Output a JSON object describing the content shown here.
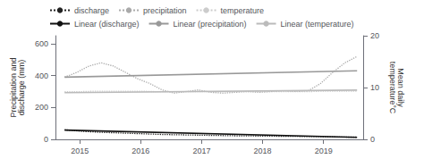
{
  "chart_data": {
    "type": "line",
    "ylabel": "Precipitation and\ndischarge (mm)",
    "y2label": "Mean daily\ntemperature°C",
    "xlim": [
      2014.6,
      2019.65
    ],
    "xticks": [
      2015,
      2016,
      2017,
      2018,
      2019
    ],
    "ylim": [
      0,
      650
    ],
    "yticks": [
      0,
      200,
      400,
      600
    ],
    "y2lim": [
      0.0,
      20.0
    ],
    "y2ticks": [
      0,
      10,
      20
    ],
    "grid": false,
    "legend": "top",
    "series": [
      {
        "name": "discharge",
        "color": "#222222",
        "line_style": "dotted",
        "x": [
          2014.75,
          2014.9,
          2015.05,
          2015.2,
          2015.35,
          2015.5,
          2015.65,
          2015.8,
          2015.95,
          2016.1,
          2016.25,
          2016.4,
          2016.55,
          2016.7,
          2016.85,
          2017.0,
          2017.15,
          2017.3,
          2017.45,
          2017.6,
          2017.75,
          2017.9,
          2018.05,
          2018.2,
          2018.35,
          2018.5,
          2018.65,
          2018.8,
          2018.95,
          2019.1,
          2019.25,
          2019.4,
          2019.55
        ],
        "values": [
          60,
          55,
          50,
          47,
          44,
          42,
          40,
          38,
          36,
          34,
          32,
          30,
          29,
          28,
          27,
          26,
          25,
          24,
          23,
          22,
          22,
          21,
          20,
          20,
          19,
          19,
          18,
          17,
          17,
          16,
          15,
          14,
          14
        ]
      },
      {
        "name": "precipitation",
        "color": "#aaaaaa",
        "line_style": "dotted",
        "x": [
          2014.75,
          2014.95,
          2015.15,
          2015.35,
          2015.55,
          2015.75,
          2015.95,
          2016.15,
          2016.35,
          2016.55,
          2016.75,
          2016.95,
          2017.15,
          2017.35,
          2017.55,
          2017.75,
          2017.95,
          2018.15,
          2018.35,
          2018.55,
          2018.75,
          2018.95,
          2019.15,
          2019.35,
          2019.55
        ],
        "values": [
          390,
          420,
          460,
          480,
          460,
          420,
          380,
          350,
          310,
          290,
          300,
          310,
          295,
          290,
          295,
          300,
          295,
          300,
          305,
          300,
          305,
          350,
          420,
          480,
          520
        ]
      },
      {
        "name": "temperature",
        "color": "#cccccc",
        "line_style": "dotted",
        "axis": "y2",
        "x": [
          2014.75,
          2015.0,
          2015.25,
          2015.5,
          2015.75,
          2016.0,
          2016.25,
          2016.5,
          2016.75,
          2017.0,
          2017.25,
          2017.5,
          2017.75,
          2018.0,
          2018.25,
          2018.5,
          2018.75,
          2019.0,
          2019.25,
          2019.5,
          2019.55
        ],
        "values": [
          9.2,
          9.2,
          9.3,
          9.3,
          9.3,
          9.3,
          9.2,
          9.2,
          9.2,
          9.2,
          9.2,
          9.2,
          9.2,
          9.2,
          9.2,
          9.2,
          9.2,
          9.3,
          9.3,
          9.3,
          9.3
        ]
      },
      {
        "name": "Linear (discharge)",
        "color": "#111111",
        "line_style": "solid",
        "x": [
          2014.75,
          2019.55
        ],
        "values": [
          58,
          13
        ]
      },
      {
        "name": "Linear (precipitation)",
        "color": "#999999",
        "line_style": "solid",
        "x": [
          2014.75,
          2019.55
        ],
        "values": [
          390,
          430
        ]
      },
      {
        "name": "Linear (temperature)",
        "color": "#bbbbbb",
        "line_style": "solid",
        "axis": "y2",
        "x": [
          2014.75,
          2019.55
        ],
        "values": [
          9.0,
          9.5
        ]
      }
    ]
  }
}
